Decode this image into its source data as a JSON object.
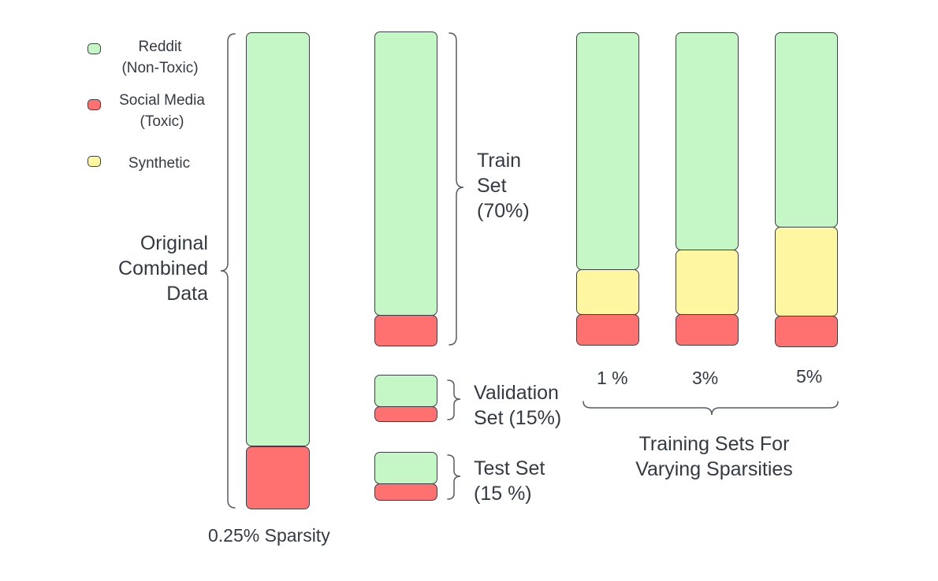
{
  "colors": {
    "reddit": "#c4f6c6",
    "social_media": "#ff7070",
    "synthetic": "#fff6a1",
    "outline": "#3d4048",
    "brace": "#555a63"
  },
  "legend": {
    "reddit": {
      "line1": "Reddit",
      "line2": "(Non-Toxic)"
    },
    "social_media": {
      "line1": "Social Media",
      "line2": "(Toxic)"
    },
    "synthetic": {
      "line1": "Synthetic"
    }
  },
  "original": {
    "label_lines": [
      "Original",
      "Combined",
      "Data"
    ],
    "caption": "0.25% Sparsity"
  },
  "splits": {
    "train": {
      "line1": "Train",
      "line2": "Set",
      "line3": "(70%)"
    },
    "validation": {
      "line1": "Validation",
      "line2": "Set (15%)"
    },
    "test": {
      "line1": "Test Set",
      "line2": "(15 %)"
    }
  },
  "sparsity_sets": {
    "labels": [
      "1 %",
      "3%",
      "5%"
    ],
    "caption_line1": "Training Sets For",
    "caption_line2": "Varying Sparsities"
  }
}
